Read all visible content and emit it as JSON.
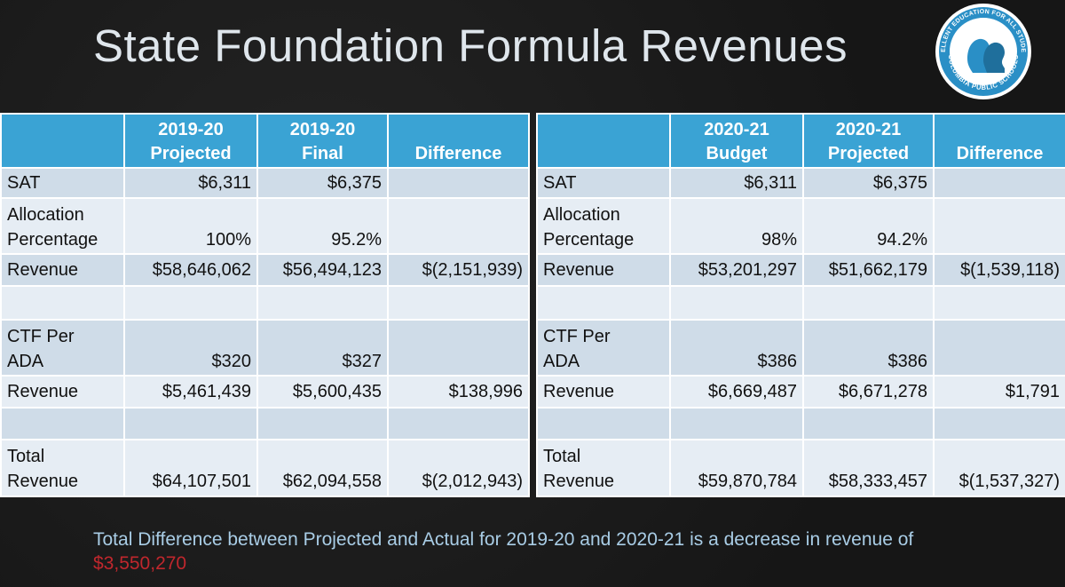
{
  "slide": {
    "title": "State Foundation Formula Revenues",
    "logo": {
      "top_text": "EXCELLENT EDUCATION FOR ALL STUDENTS",
      "bottom_text": "COLUMBIA PUBLIC SCHOOLS"
    },
    "footer": {
      "text": "Total Difference between Projected and Actual for 2019-20 and 2020-21 is a decrease in revenue of",
      "amount": "$3,550,270"
    },
    "colors": {
      "header_blue": "#3aa3d4",
      "row_dark": "#cfdce8",
      "row_light": "#e6edf4",
      "amount_red": "#c0272d"
    }
  },
  "left_table": {
    "headers": [
      {
        "line1": "",
        "line2": ""
      },
      {
        "line1": "2019-20",
        "line2": "Projected"
      },
      {
        "line1": "2019-20",
        "line2": "Final"
      },
      {
        "line1": "",
        "line2": "Difference"
      }
    ],
    "rows": [
      {
        "label1": "",
        "label2": "SAT",
        "c1": "$6,311",
        "c2": "$6,375",
        "c3": ""
      },
      {
        "label1": "Allocation",
        "label2": "Percentage",
        "c1": "100%",
        "c2": "95.2%",
        "c3": ""
      },
      {
        "label1": "",
        "label2": "Revenue",
        "c1": "$58,646,062",
        "c2": "$56,494,123",
        "c3": "$(2,151,939)"
      },
      {
        "label1": "",
        "label2": "",
        "c1": "",
        "c2": "",
        "c3": ""
      },
      {
        "label1": "CTF Per",
        "label2": "ADA",
        "c1": "$320",
        "c2": "$327",
        "c3": ""
      },
      {
        "label1": "",
        "label2": "Revenue",
        "c1": "$5,461,439",
        "c2": "$5,600,435",
        "c3": "$138,996"
      },
      {
        "label1": "",
        "label2": "",
        "c1": "",
        "c2": "",
        "c3": ""
      },
      {
        "label1": "Total",
        "label2": "Revenue",
        "c1": "$64,107,501",
        "c2": "$62,094,558",
        "c3": "$(2,012,943)"
      }
    ]
  },
  "right_table": {
    "headers": [
      {
        "line1": "",
        "line2": ""
      },
      {
        "line1": "2020-21",
        "line2": "Budget"
      },
      {
        "line1": "2020-21",
        "line2": "Projected"
      },
      {
        "line1": "",
        "line2": "Difference"
      }
    ],
    "rows": [
      {
        "label1": "",
        "label2": "SAT",
        "c1": "$6,311",
        "c2": "$6,375",
        "c3": ""
      },
      {
        "label1": "Allocation",
        "label2": "Percentage",
        "c1": "98%",
        "c2": "94.2%",
        "c3": ""
      },
      {
        "label1": "",
        "label2": "Revenue",
        "c1": "$53,201,297",
        "c2": "$51,662,179",
        "c3": "$(1,539,118)"
      },
      {
        "label1": "",
        "label2": "",
        "c1": "",
        "c2": "",
        "c3": ""
      },
      {
        "label1": "CTF Per",
        "label2": "ADA",
        "c1": "$386",
        "c2": "$386",
        "c3": ""
      },
      {
        "label1": "",
        "label2": "Revenue",
        "c1": "$6,669,487",
        "c2": "$6,671,278",
        "c3": "$1,791"
      },
      {
        "label1": "",
        "label2": "",
        "c1": "",
        "c2": "",
        "c3": ""
      },
      {
        "label1": "Total",
        "label2": "Revenue",
        "c1": "$59,870,784",
        "c2": "$58,333,457",
        "c3": "$(1,537,327)"
      }
    ]
  }
}
